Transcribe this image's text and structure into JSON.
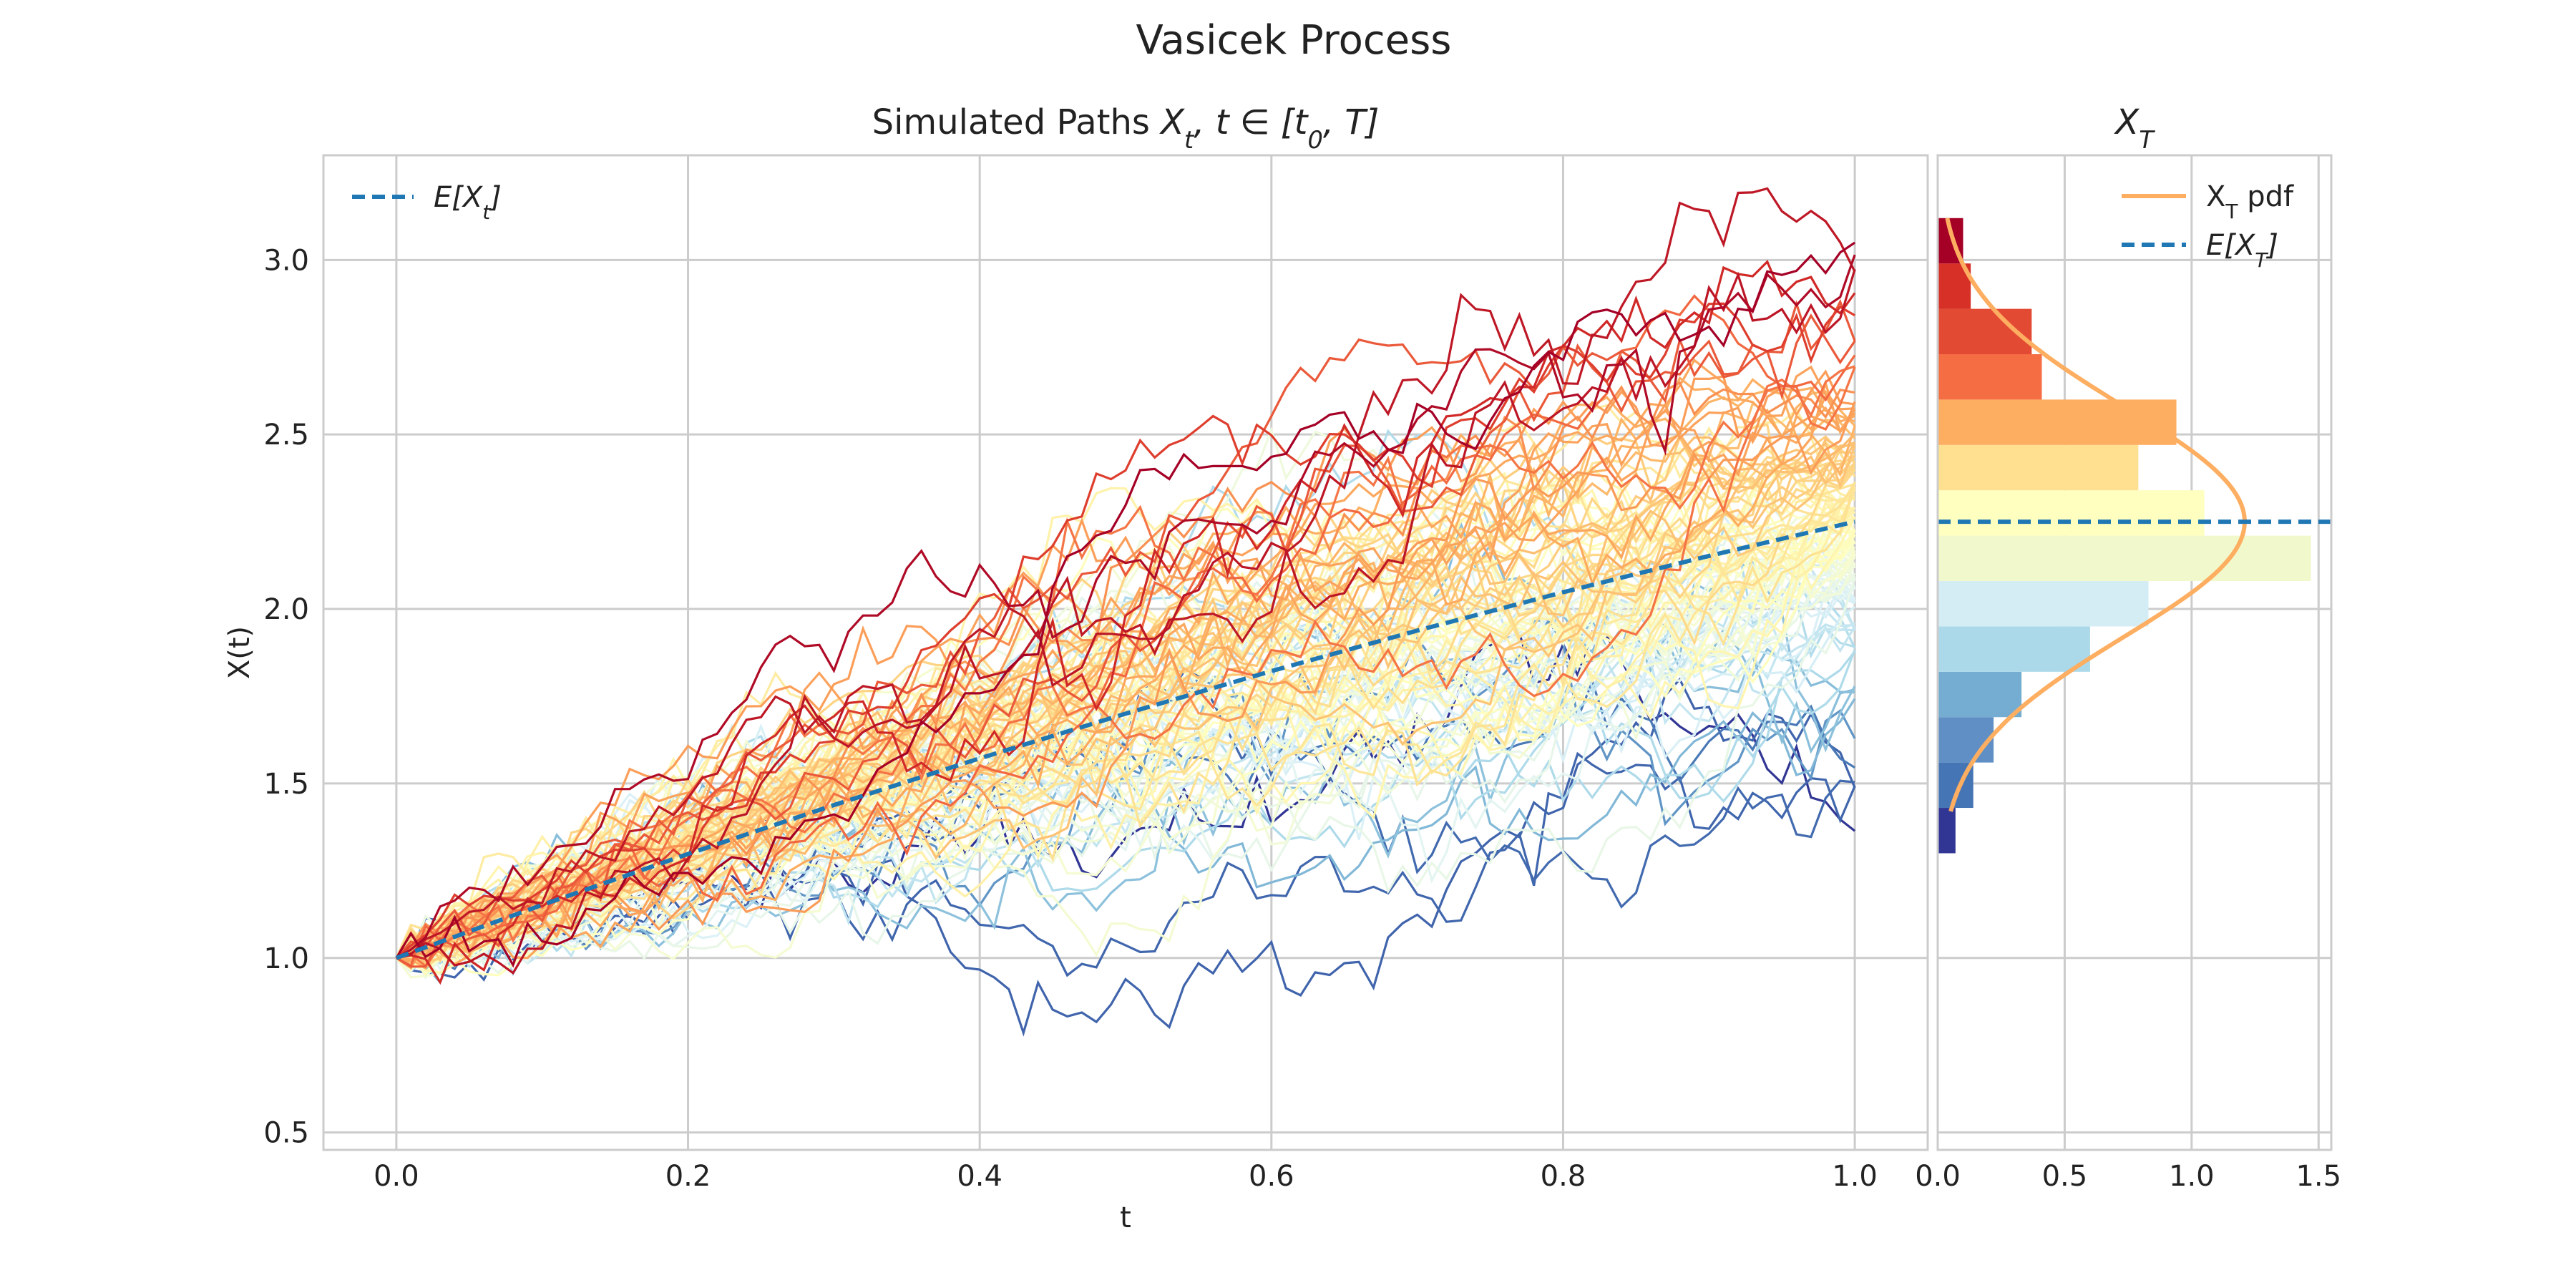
{
  "figure": {
    "title": "Vasicek Process"
  },
  "chart_data": [
    {
      "type": "line",
      "title_text": "Simulated Paths ",
      "title_math": "X_t, t ∈ [t_0, T]",
      "xlabel": "t",
      "ylabel": "X(t)",
      "xlim": [
        -0.05,
        1.05
      ],
      "ylim": [
        0.45,
        3.3
      ],
      "xticks": [
        0.0,
        0.2,
        0.4,
        0.6,
        0.8,
        1.0
      ],
      "xtick_labels": [
        "0.0",
        "0.2",
        "0.4",
        "0.6",
        "0.8",
        "1.0"
      ],
      "yticks": [
        0.5,
        1.0,
        1.5,
        2.0,
        2.5,
        3.0
      ],
      "ytick_labels": [
        "0.5",
        "1.0",
        "1.5",
        "2.0",
        "2.5",
        "3.0"
      ],
      "grid": true,
      "legend": {
        "position": "top-left",
        "entries": [
          {
            "label": "E[X_t]",
            "style": "dashed",
            "color": "#1f77b4"
          }
        ]
      },
      "paths": {
        "count": 120,
        "steps": 100,
        "x0": 1.0,
        "t_end": 1.0,
        "colormap": "RdYlBu_r",
        "color_by": "terminal value"
      },
      "mean_series": {
        "name": "E[X_t]",
        "x": [
          0.0,
          0.1,
          0.2,
          0.3,
          0.4,
          0.5,
          0.6,
          0.7,
          0.8,
          0.9,
          1.0
        ],
        "y": [
          1.0,
          1.152,
          1.298,
          1.438,
          1.572,
          1.7,
          1.822,
          1.938,
          2.048,
          2.152,
          2.25
        ]
      }
    },
    {
      "type": "bar",
      "orientation": "horizontal",
      "title": "X_T",
      "xlim": [
        0.0,
        1.55
      ],
      "xticks": [
        0.0,
        0.5,
        1.0,
        1.5
      ],
      "xtick_labels": [
        "0.0",
        "0.5",
        "1.0",
        "1.5"
      ],
      "grid": true,
      "legend": {
        "position": "top-right",
        "entries": [
          {
            "label": "X_T pdf",
            "style": "solid",
            "color": "#fdae61"
          },
          {
            "label": "E[X_T]",
            "style": "dashed",
            "color": "#1f77b4"
          }
        ]
      },
      "bins": [
        {
          "lo": 1.3,
          "hi": 1.43,
          "density": 0.07,
          "color": "#313695"
        },
        {
          "lo": 1.43,
          "hi": 1.56,
          "density": 0.14,
          "color": "#4575b4"
        },
        {
          "lo": 1.56,
          "hi": 1.69,
          "density": 0.22,
          "color": "#5f8fc4"
        },
        {
          "lo": 1.69,
          "hi": 1.82,
          "density": 0.33,
          "color": "#74add1"
        },
        {
          "lo": 1.82,
          "hi": 1.95,
          "density": 0.6,
          "color": "#abd9e9"
        },
        {
          "lo": 1.95,
          "hi": 2.08,
          "density": 0.83,
          "color": "#d4edf4"
        },
        {
          "lo": 2.08,
          "hi": 2.21,
          "density": 1.47,
          "color": "#f1f9cc"
        },
        {
          "lo": 2.21,
          "hi": 2.34,
          "density": 1.05,
          "color": "#ffffbf"
        },
        {
          "lo": 2.34,
          "hi": 2.47,
          "density": 0.79,
          "color": "#fee090"
        },
        {
          "lo": 2.47,
          "hi": 2.6,
          "density": 0.94,
          "color": "#fdae61"
        },
        {
          "lo": 2.6,
          "hi": 2.73,
          "density": 0.41,
          "color": "#f46d43"
        },
        {
          "lo": 2.73,
          "hi": 2.86,
          "density": 0.37,
          "color": "#e34a33"
        },
        {
          "lo": 2.86,
          "hi": 2.99,
          "density": 0.13,
          "color": "#d73027"
        },
        {
          "lo": 2.99,
          "hi": 3.12,
          "density": 0.1,
          "color": "#a50026"
        }
      ],
      "pdf": {
        "mean": 2.25,
        "sd": 0.33,
        "y_range": [
          1.42,
          3.12
        ]
      },
      "mean_line": {
        "value": 2.25
      }
    }
  ]
}
